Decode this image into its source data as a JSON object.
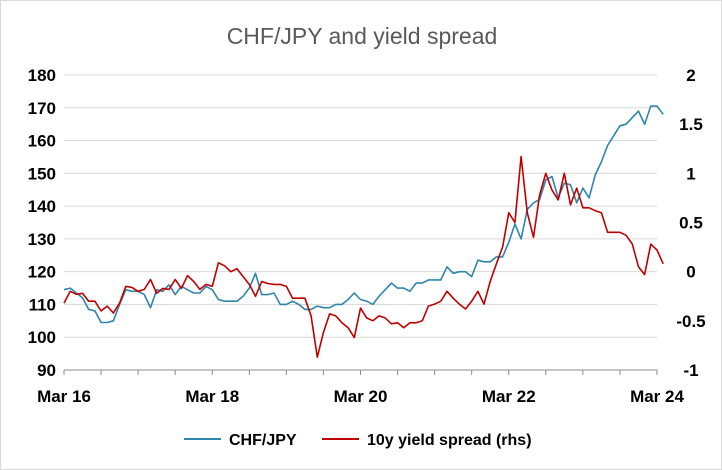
{
  "chart_data": {
    "type": "line",
    "title": "CHF/JPY and yield spread",
    "x_ticks": [
      "Mar 16",
      "Mar 18",
      "Mar 20",
      "Mar 22",
      "Mar 24"
    ],
    "x_range": [
      "2016-03",
      "2024-03"
    ],
    "left_axis": {
      "range": [
        90,
        180
      ],
      "ticks": [
        "90",
        "100",
        "110",
        "120",
        "130",
        "140",
        "150",
        "160",
        "170",
        "180"
      ]
    },
    "right_axis": {
      "range": [
        -1,
        2
      ],
      "ticks": [
        "-1",
        "-0.5",
        "0",
        "0.5",
        "1",
        "1.5",
        "2"
      ]
    },
    "grid": true,
    "legend": "bottom",
    "series": [
      {
        "name": "CHF/JPY",
        "axis": "left",
        "color": "#2e86ab",
        "points": [
          [
            "2016-03",
            114.5
          ],
          [
            "2016-04",
            115
          ],
          [
            "2016-05",
            113.5
          ],
          [
            "2016-06",
            112
          ],
          [
            "2016-07",
            108.5
          ],
          [
            "2016-08",
            108
          ],
          [
            "2016-09",
            104.5
          ],
          [
            "2016-10",
            104.5
          ],
          [
            "2016-11",
            105
          ],
          [
            "2016-12",
            110
          ],
          [
            "2017-01",
            114.5
          ],
          [
            "2017-02",
            114
          ],
          [
            "2017-03",
            114
          ],
          [
            "2017-04",
            113
          ],
          [
            "2017-05",
            109
          ],
          [
            "2017-06",
            114.5
          ],
          [
            "2017-07",
            114
          ],
          [
            "2017-08",
            116
          ],
          [
            "2017-09",
            113
          ],
          [
            "2017-10",
            115.5
          ],
          [
            "2017-11",
            114.5
          ],
          [
            "2017-12",
            113.5
          ],
          [
            "2018-01",
            113.5
          ],
          [
            "2018-02",
            115.5
          ],
          [
            "2018-03",
            114.5
          ],
          [
            "2018-04",
            111.5
          ],
          [
            "2018-05",
            111
          ],
          [
            "2018-06",
            111
          ],
          [
            "2018-07",
            111
          ],
          [
            "2018-08",
            112.5
          ],
          [
            "2018-09",
            115
          ],
          [
            "2018-10",
            119.5
          ],
          [
            "2018-11",
            113
          ],
          [
            "2018-12",
            113
          ],
          [
            "2019-01",
            113.5
          ],
          [
            "2019-02",
            110
          ],
          [
            "2019-03",
            110
          ],
          [
            "2019-04",
            111
          ],
          [
            "2019-05",
            110
          ],
          [
            "2019-06",
            108.5
          ],
          [
            "2019-07",
            108.5
          ],
          [
            "2019-08",
            109.5
          ],
          [
            "2019-09",
            109
          ],
          [
            "2019-10",
            109
          ],
          [
            "2019-11",
            110
          ],
          [
            "2019-12",
            110
          ],
          [
            "2020-01",
            111.5
          ],
          [
            "2020-02",
            113.5
          ],
          [
            "2020-03",
            111.5
          ],
          [
            "2020-04",
            111
          ],
          [
            "2020-05",
            110
          ],
          [
            "2020-06",
            112.5
          ],
          [
            "2020-07",
            114.5
          ],
          [
            "2020-08",
            116.5
          ],
          [
            "2020-09",
            115
          ],
          [
            "2020-10",
            115
          ],
          [
            "2020-11",
            114
          ],
          [
            "2020-12",
            116.5
          ],
          [
            "2021-01",
            116.5
          ],
          [
            "2021-02",
            117.5
          ],
          [
            "2021-03",
            117.5
          ],
          [
            "2021-04",
            117.5
          ],
          [
            "2021-05",
            121.5
          ],
          [
            "2021-06",
            119.5
          ],
          [
            "2021-07",
            120
          ],
          [
            "2021-08",
            120
          ],
          [
            "2021-09",
            118.5
          ],
          [
            "2021-10",
            123.5
          ],
          [
            "2021-11",
            123
          ],
          [
            "2021-12",
            123
          ],
          [
            "2022-01",
            124.5
          ],
          [
            "2022-02",
            124.5
          ],
          [
            "2022-03",
            129
          ],
          [
            "2022-04",
            134.5
          ],
          [
            "2022-05",
            130
          ],
          [
            "2022-06",
            139
          ],
          [
            "2022-07",
            141
          ],
          [
            "2022-08",
            142
          ],
          [
            "2022-09",
            148
          ],
          [
            "2022-10",
            149
          ],
          [
            "2022-11",
            142.5
          ],
          [
            "2022-12",
            147
          ],
          [
            "2023-01",
            146.5
          ],
          [
            "2023-02",
            141
          ],
          [
            "2023-03",
            145.5
          ],
          [
            "2023-04",
            142.5
          ],
          [
            "2023-05",
            149.5
          ],
          [
            "2023-06",
            153.5
          ],
          [
            "2023-07",
            158.5
          ],
          [
            "2023-08",
            161.5
          ],
          [
            "2023-09",
            164.5
          ],
          [
            "2023-10",
            165
          ],
          [
            "2023-11",
            167
          ],
          [
            "2023-12",
            169
          ],
          [
            "2024-01",
            165
          ],
          [
            "2024-02",
            170.5
          ],
          [
            "2024-03",
            170.5
          ],
          [
            "2024-04",
            168
          ]
        ]
      },
      {
        "name": "10y yield spread (rhs)",
        "axis": "right",
        "color": "#c00000",
        "points": [
          [
            "2016-03",
            -0.32
          ],
          [
            "2016-04",
            -0.2
          ],
          [
            "2016-05",
            -0.23
          ],
          [
            "2016-06",
            -0.22
          ],
          [
            "2016-07",
            -0.3
          ],
          [
            "2016-08",
            -0.3
          ],
          [
            "2016-09",
            -0.4
          ],
          [
            "2016-10",
            -0.35
          ],
          [
            "2016-11",
            -0.42
          ],
          [
            "2016-12",
            -0.32
          ],
          [
            "2017-01",
            -0.15
          ],
          [
            "2017-02",
            -0.16
          ],
          [
            "2017-03",
            -0.2
          ],
          [
            "2017-04",
            -0.18
          ],
          [
            "2017-05",
            -0.08
          ],
          [
            "2017-06",
            -0.22
          ],
          [
            "2017-07",
            -0.17
          ],
          [
            "2017-08",
            -0.18
          ],
          [
            "2017-09",
            -0.08
          ],
          [
            "2017-10",
            -0.17
          ],
          [
            "2017-11",
            -0.04
          ],
          [
            "2017-12",
            -0.1
          ],
          [
            "2018-01",
            -0.18
          ],
          [
            "2018-02",
            -0.13
          ],
          [
            "2018-03",
            -0.15
          ],
          [
            "2018-04",
            0.09
          ],
          [
            "2018-05",
            0.06
          ],
          [
            "2018-06",
            0.0
          ],
          [
            "2018-07",
            0.03
          ],
          [
            "2018-08",
            -0.05
          ],
          [
            "2018-09",
            -0.13
          ],
          [
            "2018-10",
            -0.25
          ],
          [
            "2018-11",
            -0.1
          ],
          [
            "2018-12",
            -0.12
          ],
          [
            "2019-01",
            -0.13
          ],
          [
            "2019-02",
            -0.13
          ],
          [
            "2019-03",
            -0.15
          ],
          [
            "2019-04",
            -0.27
          ],
          [
            "2019-05",
            -0.27
          ],
          [
            "2019-06",
            -0.27
          ],
          [
            "2019-07",
            -0.45
          ],
          [
            "2019-08",
            -0.87
          ],
          [
            "2019-09",
            -0.62
          ],
          [
            "2019-10",
            -0.43
          ],
          [
            "2019-11",
            -0.45
          ],
          [
            "2019-12",
            -0.52
          ],
          [
            "2020-01",
            -0.57
          ],
          [
            "2020-02",
            -0.67
          ],
          [
            "2020-03",
            -0.37
          ],
          [
            "2020-04",
            -0.47
          ],
          [
            "2020-05",
            -0.5
          ],
          [
            "2020-06",
            -0.45
          ],
          [
            "2020-07",
            -0.47
          ],
          [
            "2020-08",
            -0.53
          ],
          [
            "2020-09",
            -0.52
          ],
          [
            "2020-10",
            -0.57
          ],
          [
            "2020-11",
            -0.52
          ],
          [
            "2020-12",
            -0.52
          ],
          [
            "2021-01",
            -0.5
          ],
          [
            "2021-02",
            -0.35
          ],
          [
            "2021-03",
            -0.33
          ],
          [
            "2021-04",
            -0.3
          ],
          [
            "2021-05",
            -0.2
          ],
          [
            "2021-06",
            -0.27
          ],
          [
            "2021-07",
            -0.33
          ],
          [
            "2021-08",
            -0.38
          ],
          [
            "2021-09",
            -0.3
          ],
          [
            "2021-10",
            -0.2
          ],
          [
            "2021-11",
            -0.33
          ],
          [
            "2021-12",
            -0.1
          ],
          [
            "2022-01",
            0.08
          ],
          [
            "2022-02",
            0.25
          ],
          [
            "2022-03",
            0.6
          ],
          [
            "2022-04",
            0.5
          ],
          [
            "2022-05",
            1.17
          ],
          [
            "2022-06",
            0.6
          ],
          [
            "2022-07",
            0.35
          ],
          [
            "2022-08",
            0.78
          ],
          [
            "2022-09",
            1.0
          ],
          [
            "2022-10",
            0.83
          ],
          [
            "2022-11",
            0.73
          ],
          [
            "2022-12",
            1.0
          ],
          [
            "2023-01",
            0.68
          ],
          [
            "2023-02",
            0.85
          ],
          [
            "2023-03",
            0.65
          ],
          [
            "2023-04",
            0.65
          ],
          [
            "2023-05",
            0.62
          ],
          [
            "2023-06",
            0.6
          ],
          [
            "2023-07",
            0.4
          ],
          [
            "2023-08",
            0.4
          ],
          [
            "2023-09",
            0.4
          ],
          [
            "2023-10",
            0.37
          ],
          [
            "2023-11",
            0.28
          ],
          [
            "2023-12",
            0.05
          ],
          [
            "2024-01",
            -0.03
          ],
          [
            "2024-02",
            0.28
          ],
          [
            "2024-03",
            0.22
          ],
          [
            "2024-04",
            0.08
          ]
        ]
      }
    ]
  }
}
